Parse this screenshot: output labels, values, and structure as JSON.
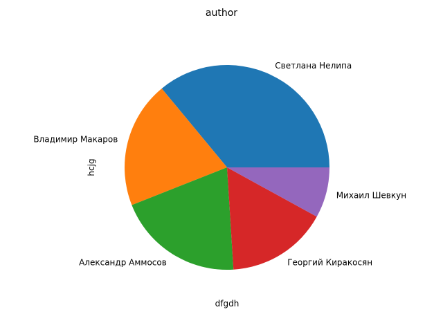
{
  "chart_data": {
    "type": "pie",
    "title": "author",
    "xlabel": "dfgdh",
    "ylabel": "hcjg",
    "categories": [
      "Светлана Нелипа",
      "Владимир Макаров",
      "Александр Аммосов",
      "Георгий Киракосян",
      "Михаил Шевкун"
    ],
    "values": [
      9,
      5,
      5,
      4,
      2
    ],
    "colors": [
      "#1f77b4",
      "#ff7f0e",
      "#2ca02c",
      "#d62728",
      "#9467bd"
    ],
    "start_angle": 0,
    "direction": "counterclockwise",
    "legend": "none"
  }
}
